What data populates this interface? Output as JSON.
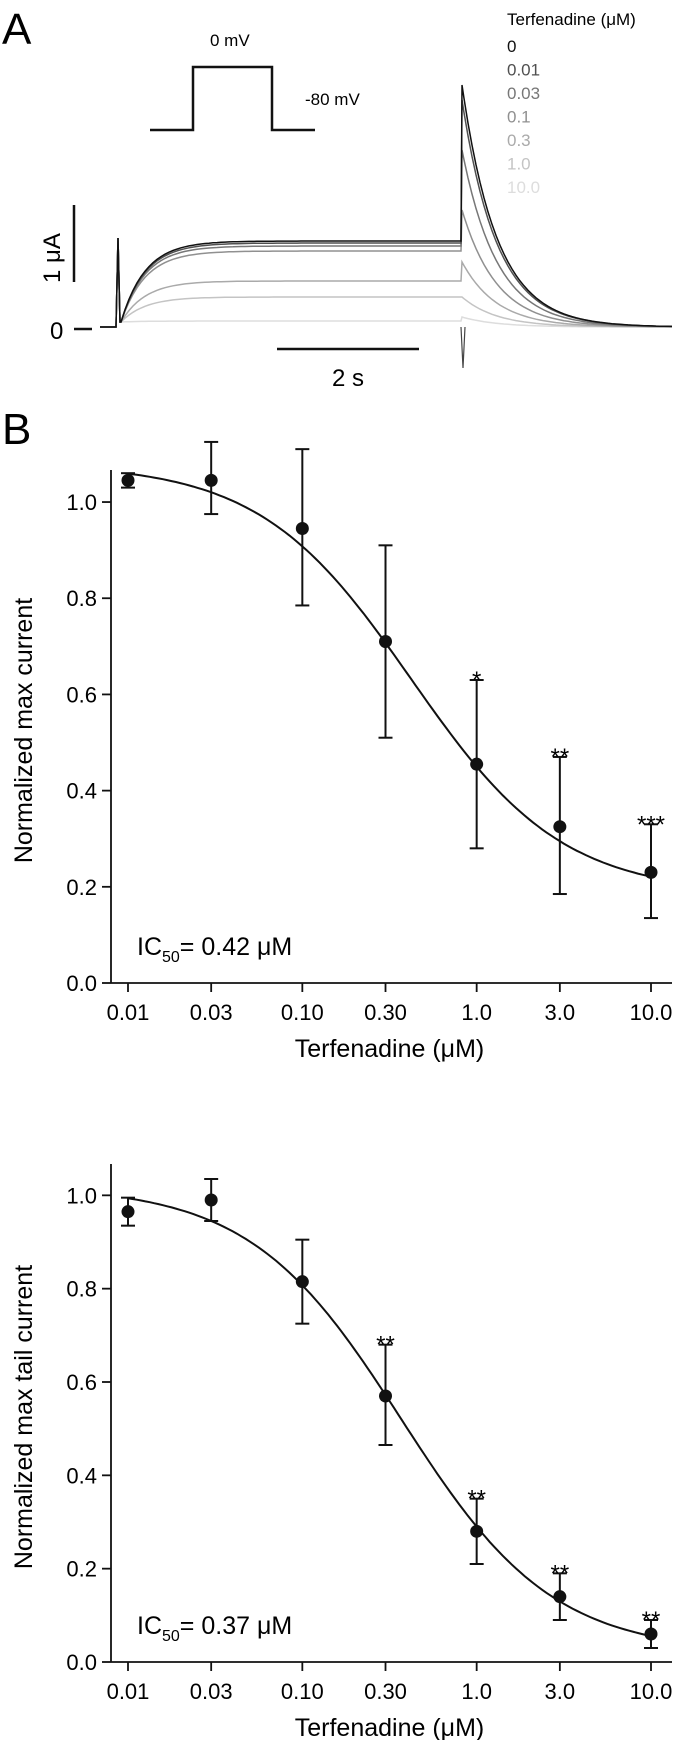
{
  "panel_a": {
    "letter": "A",
    "protocol_high": "0 mV",
    "protocol_low": "-80 mV",
    "legend_title": "Terfenadine (μM)",
    "legend_items": [
      {
        "label": "0",
        "color": "#111111"
      },
      {
        "label": "0.01",
        "color": "#505050"
      },
      {
        "label": "0.03",
        "color": "#777777"
      },
      {
        "label": "0.1",
        "color": "#909090"
      },
      {
        "label": "0.3",
        "color": "#aaaaaa"
      },
      {
        "label": "1.0",
        "color": "#c4c4c4"
      },
      {
        "label": "10.0",
        "color": "#dddddd"
      }
    ],
    "scale_current": "1 μA",
    "scale_time": "2 s",
    "zero_label": "0"
  },
  "panel_b": {
    "letter": "B"
  },
  "chart_data": [
    {
      "type": "scatter",
      "fit": "Hill curve",
      "xscale": "log",
      "xlabel": "Terfenadine (μM)",
      "ylabel": "Normalized max current",
      "x_tick_labels": [
        "0.01",
        "0.03",
        "0.10",
        "0.30",
        "1.0",
        "3.0",
        "10.0"
      ],
      "y_tick_labels": [
        "0.0",
        "0.2",
        "0.4",
        "0.6",
        "0.8",
        "1.0"
      ],
      "ylim": [
        0,
        1.05
      ],
      "series": [
        {
          "x": [
            0.01,
            0.03,
            0.1,
            0.3,
            1.0,
            3.0,
            10.0
          ],
          "y": [
            1.045,
            1.045,
            0.945,
            0.71,
            0.455,
            0.325,
            0.23
          ],
          "err_low": [
            0.015,
            0.07,
            0.16,
            0.2,
            0.175,
            0.14,
            0.095
          ],
          "err_high": [
            0.015,
            0.08,
            0.165,
            0.2,
            0.175,
            0.145,
            0.1
          ],
          "significance": [
            "",
            "",
            "",
            "",
            "*",
            "**",
            "***"
          ]
        }
      ],
      "annotation_main": "IC",
      "annotation_sub": "50",
      "annotation_rest": "= 0.42 μM",
      "fit_params": {
        "top": 1.08,
        "bottom": 0.185,
        "ic50": 0.42,
        "hill": 1.0
      }
    },
    {
      "type": "scatter",
      "fit": "Hill curve",
      "xscale": "log",
      "xlabel": "Terfenadine (μM)",
      "ylabel": "Normalized max tail current",
      "x_tick_labels": [
        "0.01",
        "0.03",
        "0.10",
        "0.30",
        "1.0",
        "3.0",
        "10.0"
      ],
      "y_tick_labels": [
        "0.0",
        "0.2",
        "0.4",
        "0.6",
        "0.8",
        "1.0"
      ],
      "ylim": [
        0,
        1.05
      ],
      "series": [
        {
          "x": [
            0.01,
            0.03,
            0.1,
            0.3,
            1.0,
            3.0,
            10.0
          ],
          "y": [
            0.965,
            0.99,
            0.815,
            0.57,
            0.28,
            0.14,
            0.06
          ],
          "err_low": [
            0.03,
            0.045,
            0.09,
            0.105,
            0.07,
            0.05,
            0.03
          ],
          "err_high": [
            0.03,
            0.045,
            0.09,
            0.11,
            0.07,
            0.05,
            0.03
          ],
          "significance": [
            "",
            "",
            "",
            "**",
            "**",
            "**",
            "**"
          ]
        }
      ],
      "annotation_main": "IC",
      "annotation_sub": "50",
      "annotation_rest": "= 0.37 μM",
      "fit_params": {
        "top": 1.02,
        "bottom": 0.02,
        "ic50": 0.37,
        "hill": 1.0
      }
    }
  ]
}
